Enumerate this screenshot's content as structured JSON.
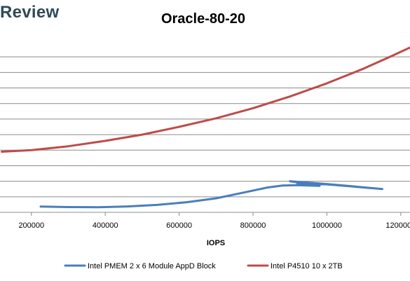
{
  "brand": {
    "text": "Review"
  },
  "chart_data": {
    "type": "line",
    "title": "Oracle-80-20",
    "xlabel": "IOPS",
    "ylabel": "",
    "xlim": [
      115000,
      1225000
    ],
    "ylim": [
      0,
      11
    ],
    "x_ticks": [
      200000,
      400000,
      600000,
      800000,
      1000000,
      1200000
    ],
    "x_tick_labels": [
      "200000",
      "400000",
      "600000",
      "800000",
      "1000000",
      "1200000"
    ],
    "y_gridlines": [
      1,
      2,
      3,
      4,
      5,
      6,
      7,
      8,
      9,
      10
    ],
    "y_tick_labels_visible": false,
    "grid": true,
    "legend_position": "bottom",
    "series": [
      {
        "name": "Intel PMEM 2 x 6 Module AppD Block",
        "color": "#4a7ebb",
        "points": [
          {
            "x": 225000,
            "y": 0.37
          },
          {
            "x": 300000,
            "y": 0.34
          },
          {
            "x": 380000,
            "y": 0.33
          },
          {
            "x": 460000,
            "y": 0.38
          },
          {
            "x": 540000,
            "y": 0.48
          },
          {
            "x": 620000,
            "y": 0.65
          },
          {
            "x": 700000,
            "y": 0.9
          },
          {
            "x": 770000,
            "y": 1.25
          },
          {
            "x": 840000,
            "y": 1.6
          },
          {
            "x": 880000,
            "y": 1.72
          },
          {
            "x": 920000,
            "y": 1.75
          },
          {
            "x": 980000,
            "y": 1.7
          },
          {
            "x": 900000,
            "y": 2.0
          },
          {
            "x": 1000000,
            "y": 1.82
          },
          {
            "x": 1150000,
            "y": 1.5
          },
          {
            "x": 1000000,
            "y": 1.8
          },
          {
            "x": 920000,
            "y": 1.85
          }
        ]
      },
      {
        "name": "Intel P4510 10 x 2TB",
        "color": "#be4b48",
        "points": [
          {
            "x": 120000,
            "y": 3.9
          },
          {
            "x": 200000,
            "y": 4.0
          },
          {
            "x": 300000,
            "y": 4.25
          },
          {
            "x": 400000,
            "y": 4.6
          },
          {
            "x": 500000,
            "y": 5.0
          },
          {
            "x": 600000,
            "y": 5.5
          },
          {
            "x": 700000,
            "y": 6.05
          },
          {
            "x": 800000,
            "y": 6.7
          },
          {
            "x": 900000,
            "y": 7.45
          },
          {
            "x": 1000000,
            "y": 8.3
          },
          {
            "x": 1100000,
            "y": 9.25
          },
          {
            "x": 1170000,
            "y": 10.0
          },
          {
            "x": 1225000,
            "y": 10.6
          }
        ]
      }
    ]
  }
}
